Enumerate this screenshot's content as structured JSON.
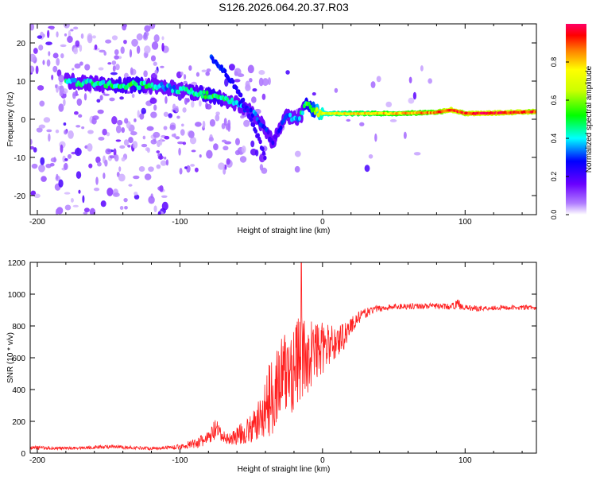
{
  "title": "S126.2026.064.20.37.R03",
  "chart_data": [
    {
      "type": "heatmap",
      "xlabel": "Height of straight line (km)",
      "ylabel": "Frequency (Hz)",
      "xlim": [
        -205,
        150
      ],
      "ylim": [
        -25,
        25
      ],
      "xticks": [
        -200,
        -100,
        0,
        100
      ],
      "yticks": [
        -20,
        -10,
        0,
        10,
        20
      ],
      "colorbar": {
        "label": "Normalized spectral amplitude",
        "range": [
          0.0,
          1.0
        ],
        "ticks": [
          0.0,
          0.2,
          0.4,
          0.6,
          0.8
        ]
      },
      "ridge": {
        "x": [
          -180,
          -150,
          -130,
          -110,
          -90,
          -75,
          -60,
          -50,
          -45,
          -40,
          -35,
          -30,
          -25,
          -20,
          -15,
          -12,
          -8,
          -5,
          0,
          20,
          50,
          80,
          90,
          100,
          110,
          150
        ],
        "freq": [
          10,
          9,
          9,
          8.5,
          7,
          6,
          4,
          2,
          0,
          -3,
          -6,
          -2,
          1,
          0,
          1,
          4,
          3,
          2,
          1.5,
          1.5,
          1.5,
          1.8,
          2.5,
          1.5,
          1.5,
          2
        ],
        "amplitude": [
          0.4,
          0.45,
          0.5,
          0.35,
          0.45,
          0.5,
          0.35,
          0.3,
          0.3,
          0.25,
          0.2,
          0.25,
          0.3,
          0.35,
          0.4,
          0.5,
          0.55,
          0.6,
          0.7,
          0.75,
          0.8,
          0.85,
          0.95,
          0.9,
          0.95,
          0.9
        ]
      },
      "secondary_ridge": {
        "x": [
          -78,
          -70,
          -60,
          -50,
          -40
        ],
        "freq": [
          16,
          13,
          8,
          0,
          -10
        ],
        "amplitude": [
          0.3,
          0.28,
          0.25,
          0.22,
          0.2
        ]
      }
    },
    {
      "type": "line",
      "xlabel": "Height of straight line (km)",
      "ylabel": "SNR (10 * v/v)",
      "xlim": [
        -205,
        150
      ],
      "ylim": [
        0,
        1200
      ],
      "xticks": [
        -200,
        -100,
        0,
        100
      ],
      "yticks": [
        0,
        200,
        400,
        600,
        800,
        1000,
        1200
      ],
      "color": "#ff2020",
      "series": [
        {
          "name": "SNR",
          "x": [
            -205,
            -180,
            -150,
            -120,
            -100,
            -90,
            -80,
            -75,
            -70,
            -65,
            -60,
            -50,
            -45,
            -40,
            -35,
            -30,
            -25,
            -20,
            -15,
            -10,
            -5,
            0,
            5,
            10,
            15,
            20,
            25,
            30,
            35,
            40,
            50,
            60,
            70,
            80,
            90,
            95,
            100,
            110,
            120,
            130,
            140,
            150
          ],
          "values": [
            35,
            30,
            40,
            30,
            40,
            60,
            90,
            150,
            100,
            90,
            110,
            150,
            200,
            280,
            380,
            450,
            500,
            550,
            600,
            620,
            640,
            660,
            680,
            700,
            740,
            800,
            850,
            880,
            900,
            910,
            920,
            925,
            925,
            925,
            920,
            940,
            915,
            910,
            915,
            915,
            915,
            915
          ],
          "jitter": [
            12,
            10,
            12,
            10,
            14,
            30,
            50,
            70,
            40,
            40,
            60,
            90,
            130,
            200,
            260,
            280,
            300,
            300,
            280,
            250,
            200,
            160,
            130,
            110,
            90,
            60,
            40,
            30,
            25,
            20,
            20,
            20,
            18,
            18,
            18,
            30,
            18,
            18,
            15,
            15,
            15,
            15
          ]
        }
      ]
    }
  ]
}
